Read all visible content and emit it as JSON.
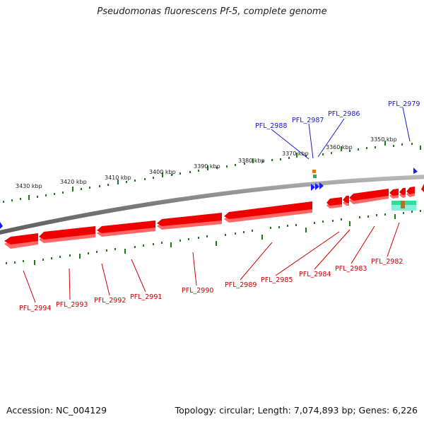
{
  "title": "Pseudomonas fluorescens Pf-5, complete genome",
  "footer": {
    "accession": "Accession: NC_004129",
    "summary": "Topology: circular; Length: 7,074,893 bp; Genes: 6,226"
  },
  "ticks": [
    "3430 kbp",
    "3420 kbp",
    "3410 kbp",
    "3400 kbp",
    "3390 kbp",
    "3380 kbp",
    "3370 kbp",
    "3360 kbp",
    "3350 kbp"
  ],
  "forward_labels": [
    "PFL_2988",
    "PFL_2987",
    "PFL_2986",
    "PFL_2979"
  ],
  "reverse_labels": [
    "PFL_2994",
    "PFL_2993",
    "PFL_2992",
    "PFL_2991",
    "PFL_2990",
    "PFL_2989",
    "PFL_2985",
    "PFL_2984",
    "PFL_2983",
    "PFL_2982"
  ],
  "colors": {
    "forward_gene": "#1a1aff",
    "reverse_gene": "#ee0000",
    "forward_label": "#1a1acc",
    "reverse_label": "#cc0000",
    "backbone": "#808080",
    "scale": "#1f7a1f",
    "feature_green": "#33dd99",
    "feature_orange": "#dd7711"
  }
}
